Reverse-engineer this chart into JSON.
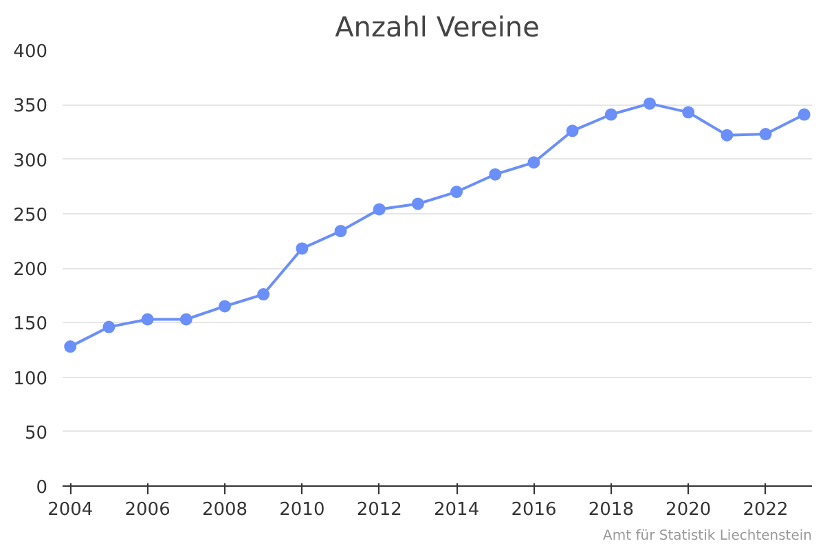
{
  "chart_data": {
    "type": "line",
    "title": "Anzahl Vereine",
    "x": [
      2004,
      2005,
      2006,
      2007,
      2008,
      2009,
      2010,
      2011,
      2012,
      2013,
      2014,
      2015,
      2016,
      2017,
      2018,
      2019,
      2020,
      2021,
      2022,
      2023
    ],
    "series": [
      {
        "color": "#6b8ff8",
        "values": [
          128,
          146,
          153,
          153,
          165,
          176,
          218,
          234,
          254,
          259,
          270,
          286,
          297,
          326,
          341,
          351,
          343,
          322,
          323,
          341
        ]
      }
    ],
    "xlim": [
      2003.8,
      2023.2
    ],
    "xticks": [
      2004,
      2006,
      2008,
      2010,
      2012,
      2014,
      2016,
      2018,
      2020,
      2022
    ],
    "ylim": [
      0,
      400
    ],
    "yticks": [
      0,
      50,
      100,
      150,
      200,
      250,
      300,
      350,
      400
    ],
    "grid": "y",
    "marker": "circle",
    "line_style": "solid",
    "annotations": [
      "Amt für Statistik Liechtenstein"
    ]
  }
}
